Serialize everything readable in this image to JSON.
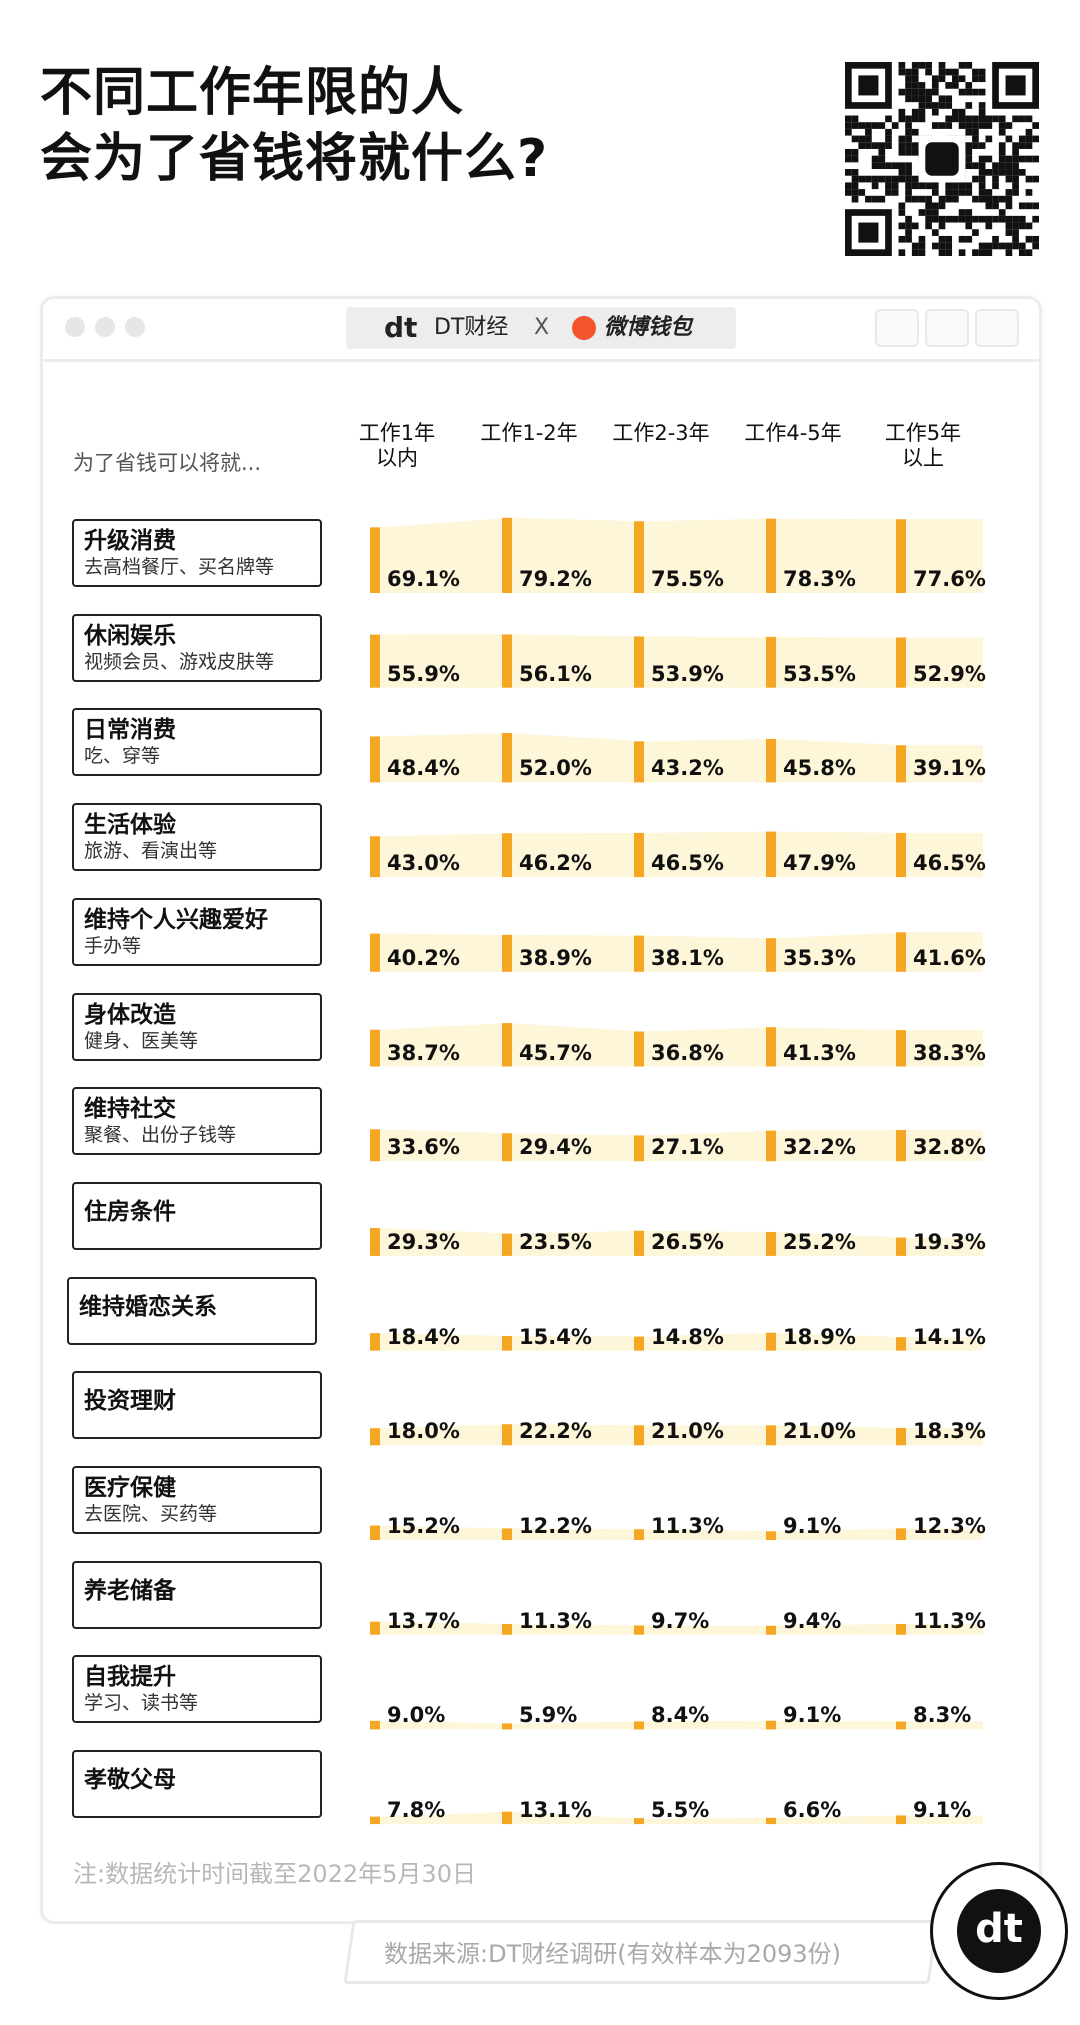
{
  "title": [
    "不同工作年限的人",
    "会为了省钱将就什么?"
  ],
  "window": {
    "brand_dt": "DT财经",
    "brand_x": "X",
    "brand_partner": "微博钱包"
  },
  "subheader": "为了省钱可以将就...",
  "colors": {
    "accent": "#F5A623",
    "band": "#FEF6D9"
  },
  "chart_data": {
    "type": "table",
    "columns": [
      "工作1年以内",
      "工作1-2年",
      "工作2-3年",
      "工作4-5年",
      "工作5年以上"
    ],
    "column_lines": [
      [
        "工作1年",
        "以内"
      ],
      [
        "工作1-2年"
      ],
      [
        "工作2-3年"
      ],
      [
        "工作4-5年"
      ],
      [
        "工作5年",
        "以上"
      ]
    ],
    "rows": [
      {
        "name": "升级消费",
        "sub": "去高档餐厅、买名牌等",
        "values": [
          69.1,
          79.2,
          75.5,
          78.3,
          77.6
        ]
      },
      {
        "name": "休闲娱乐",
        "sub": "视频会员、游戏皮肤等",
        "values": [
          55.9,
          56.1,
          53.9,
          53.5,
          52.9
        ]
      },
      {
        "name": "日常消费",
        "sub": "吃、穿等",
        "values": [
          48.4,
          52.0,
          43.2,
          45.8,
          39.1
        ]
      },
      {
        "name": "生活体验",
        "sub": "旅游、看演出等",
        "values": [
          43.0,
          46.2,
          46.5,
          47.9,
          46.5
        ]
      },
      {
        "name": "维持个人兴趣爱好",
        "sub": "手办等",
        "values": [
          40.2,
          38.9,
          38.1,
          35.3,
          41.6
        ]
      },
      {
        "name": "身体改造",
        "sub": "健身、医美等",
        "values": [
          38.7,
          45.7,
          36.8,
          41.3,
          38.3
        ]
      },
      {
        "name": "维持社交",
        "sub": "聚餐、出份子钱等",
        "values": [
          33.6,
          29.4,
          27.1,
          32.2,
          32.8
        ]
      },
      {
        "name": "住房条件",
        "sub": "",
        "values": [
          29.3,
          23.5,
          26.5,
          25.2,
          19.3
        ]
      },
      {
        "name": "维持婚恋关系",
        "sub": "",
        "values": [
          18.4,
          15.4,
          14.8,
          18.9,
          14.1
        ]
      },
      {
        "name": "投资理财",
        "sub": "",
        "values": [
          18.0,
          22.2,
          21.0,
          21.0,
          18.3
        ]
      },
      {
        "name": "医疗保健",
        "sub": "去医院、买药等",
        "values": [
          15.2,
          12.2,
          11.3,
          9.1,
          12.3
        ]
      },
      {
        "name": "养老储备",
        "sub": "",
        "values": [
          13.7,
          11.3,
          9.7,
          9.4,
          11.3
        ]
      },
      {
        "name": "自我提升",
        "sub": "学习、读书等",
        "values": [
          9.0,
          5.9,
          8.4,
          9.1,
          8.3
        ]
      },
      {
        "name": "孝敬父母",
        "sub": "",
        "values": [
          7.8,
          13.1,
          5.5,
          6.6,
          9.1
        ]
      }
    ],
    "unit": "%"
  },
  "note": "注:数据统计时间截至2022年5月30日",
  "source": "数据来源:DT财经调研(有效样本为2093份)",
  "badge_logo": "dt"
}
